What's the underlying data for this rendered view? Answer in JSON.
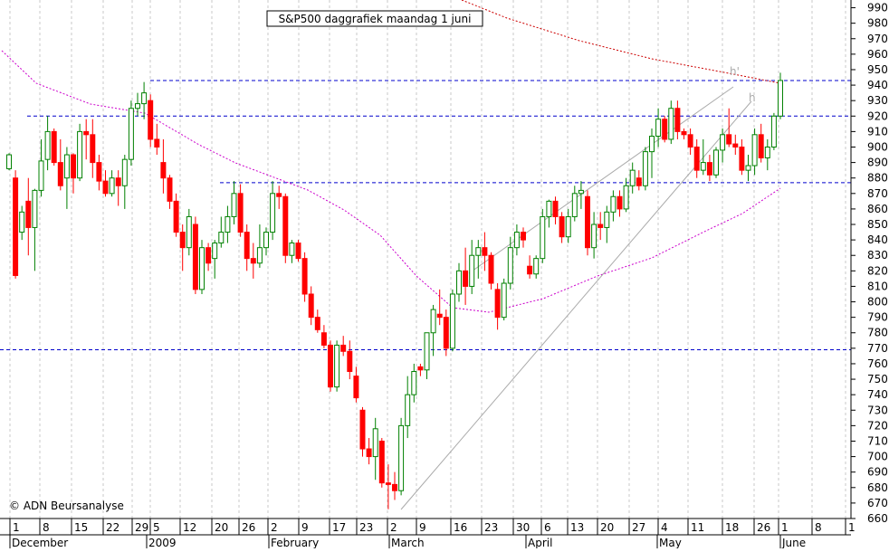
{
  "chart_data": {
    "type": "candlestick",
    "title": "S&P500 daggrafiek maandag 1 juni",
    "copyright": "© ADN Beursanalyse",
    "xlabel": "",
    "ylabel": "",
    "ylim": [
      660,
      995
    ],
    "y_ticks": [
      660,
      670,
      680,
      690,
      700,
      710,
      720,
      730,
      740,
      750,
      760,
      770,
      780,
      790,
      800,
      810,
      820,
      830,
      840,
      850,
      860,
      870,
      880,
      890,
      900,
      910,
      920,
      930,
      940,
      950,
      960,
      970,
      980,
      990
    ],
    "x_tick_labels": [
      "1",
      "8",
      "15",
      "22",
      "29",
      "5",
      "12",
      "20",
      "26",
      "2",
      "9",
      "17",
      "23",
      "2",
      "9",
      "16",
      "23",
      "30",
      "6",
      "13",
      "20",
      "27",
      "4",
      "11",
      "18",
      "26",
      "1",
      "8",
      "1"
    ],
    "month_labels": [
      "December",
      "2009",
      "February",
      "March",
      "April",
      "May",
      "June"
    ],
    "horizontal_levels": [
      943,
      920,
      877,
      769
    ],
    "pattern_labels": [
      "h'",
      "h"
    ],
    "grid": true,
    "colors": {
      "up": "#008000",
      "down": "#ff0000",
      "level": "#0000cc",
      "ma_long": "#cc0000",
      "ma_mid": "#cc00cc",
      "trend": "#aaaaaa"
    },
    "candles": [
      {
        "o": 886,
        "h": 896,
        "l": 885,
        "c": 895
      },
      {
        "o": 880,
        "h": 885,
        "l": 815,
        "c": 817
      },
      {
        "o": 845,
        "h": 862,
        "l": 840,
        "c": 858
      },
      {
        "o": 865,
        "h": 880,
        "l": 830,
        "c": 848
      },
      {
        "o": 848,
        "h": 873,
        "l": 820,
        "c": 872
      },
      {
        "o": 872,
        "h": 905,
        "l": 868,
        "c": 891
      },
      {
        "o": 892,
        "h": 920,
        "l": 885,
        "c": 910
      },
      {
        "o": 910,
        "h": 912,
        "l": 888,
        "c": 890
      },
      {
        "o": 890,
        "h": 905,
        "l": 872,
        "c": 875
      },
      {
        "o": 880,
        "h": 900,
        "l": 860,
        "c": 895
      },
      {
        "o": 895,
        "h": 896,
        "l": 870,
        "c": 880
      },
      {
        "o": 880,
        "h": 915,
        "l": 878,
        "c": 910
      },
      {
        "o": 910,
        "h": 918,
        "l": 892,
        "c": 908
      },
      {
        "o": 908,
        "h": 918,
        "l": 880,
        "c": 890
      },
      {
        "o": 890,
        "h": 895,
        "l": 872,
        "c": 878
      },
      {
        "o": 878,
        "h": 885,
        "l": 868,
        "c": 870
      },
      {
        "o": 870,
        "h": 885,
        "l": 868,
        "c": 880
      },
      {
        "o": 880,
        "h": 885,
        "l": 862,
        "c": 875
      },
      {
        "o": 875,
        "h": 895,
        "l": 860,
        "c": 892
      },
      {
        "o": 892,
        "h": 930,
        "l": 888,
        "c": 925
      },
      {
        "o": 925,
        "h": 935,
        "l": 920,
        "c": 928
      },
      {
        "o": 928,
        "h": 942,
        "l": 918,
        "c": 935
      },
      {
        "o": 930,
        "h": 934,
        "l": 900,
        "c": 905
      },
      {
        "o": 905,
        "h": 915,
        "l": 895,
        "c": 900
      },
      {
        "o": 890,
        "h": 905,
        "l": 870,
        "c": 880
      },
      {
        "o": 880,
        "h": 882,
        "l": 860,
        "c": 865
      },
      {
        "o": 865,
        "h": 870,
        "l": 842,
        "c": 845
      },
      {
        "o": 845,
        "h": 850,
        "l": 820,
        "c": 835
      },
      {
        "o": 835,
        "h": 860,
        "l": 830,
        "c": 855
      },
      {
        "o": 850,
        "h": 855,
        "l": 805,
        "c": 808
      },
      {
        "o": 808,
        "h": 840,
        "l": 805,
        "c": 835
      },
      {
        "o": 835,
        "h": 838,
        "l": 820,
        "c": 825
      },
      {
        "o": 828,
        "h": 840,
        "l": 815,
        "c": 838
      },
      {
        "o": 838,
        "h": 855,
        "l": 835,
        "c": 845
      },
      {
        "o": 845,
        "h": 862,
        "l": 838,
        "c": 855
      },
      {
        "o": 855,
        "h": 878,
        "l": 850,
        "c": 870
      },
      {
        "o": 870,
        "h": 876,
        "l": 842,
        "c": 845
      },
      {
        "o": 845,
        "h": 850,
        "l": 820,
        "c": 828
      },
      {
        "o": 828,
        "h": 838,
        "l": 815,
        "c": 825
      },
      {
        "o": 825,
        "h": 850,
        "l": 822,
        "c": 835
      },
      {
        "o": 835,
        "h": 848,
        "l": 830,
        "c": 845
      },
      {
        "o": 845,
        "h": 878,
        "l": 840,
        "c": 870
      },
      {
        "o": 870,
        "h": 875,
        "l": 860,
        "c": 868
      },
      {
        "o": 868,
        "h": 870,
        "l": 825,
        "c": 830
      },
      {
        "o": 830,
        "h": 840,
        "l": 825,
        "c": 838
      },
      {
        "o": 838,
        "h": 840,
        "l": 826,
        "c": 828
      },
      {
        "o": 828,
        "h": 832,
        "l": 800,
        "c": 805
      },
      {
        "o": 805,
        "h": 810,
        "l": 785,
        "c": 790
      },
      {
        "o": 790,
        "h": 795,
        "l": 780,
        "c": 782
      },
      {
        "o": 780,
        "h": 785,
        "l": 770,
        "c": 772
      },
      {
        "o": 772,
        "h": 775,
        "l": 742,
        "c": 745
      },
      {
        "o": 745,
        "h": 775,
        "l": 742,
        "c": 772
      },
      {
        "o": 772,
        "h": 778,
        "l": 765,
        "c": 768
      },
      {
        "o": 768,
        "h": 775,
        "l": 750,
        "c": 755
      },
      {
        "o": 752,
        "h": 758,
        "l": 735,
        "c": 738
      },
      {
        "o": 730,
        "h": 732,
        "l": 700,
        "c": 705
      },
      {
        "o": 705,
        "h": 712,
        "l": 695,
        "c": 700
      },
      {
        "o": 700,
        "h": 725,
        "l": 685,
        "c": 718
      },
      {
        "o": 710,
        "h": 712,
        "l": 680,
        "c": 683
      },
      {
        "o": 683,
        "h": 695,
        "l": 666,
        "c": 682
      },
      {
        "o": 682,
        "h": 690,
        "l": 672,
        "c": 678
      },
      {
        "o": 678,
        "h": 725,
        "l": 675,
        "c": 720
      },
      {
        "o": 720,
        "h": 752,
        "l": 712,
        "c": 740
      },
      {
        "o": 740,
        "h": 760,
        "l": 735,
        "c": 755
      },
      {
        "o": 758,
        "h": 760,
        "l": 752,
        "c": 756
      },
      {
        "o": 756,
        "h": 780,
        "l": 750,
        "c": 780
      },
      {
        "o": 780,
        "h": 798,
        "l": 765,
        "c": 795
      },
      {
        "o": 792,
        "h": 808,
        "l": 785,
        "c": 790
      },
      {
        "o": 790,
        "h": 795,
        "l": 765,
        "c": 770
      },
      {
        "o": 770,
        "h": 808,
        "l": 768,
        "c": 805
      },
      {
        "o": 805,
        "h": 825,
        "l": 800,
        "c": 820
      },
      {
        "o": 820,
        "h": 835,
        "l": 798,
        "c": 810
      },
      {
        "o": 810,
        "h": 840,
        "l": 805,
        "c": 830
      },
      {
        "o": 830,
        "h": 840,
        "l": 815,
        "c": 835
      },
      {
        "o": 835,
        "h": 845,
        "l": 820,
        "c": 830
      },
      {
        "o": 830,
        "h": 832,
        "l": 808,
        "c": 812
      },
      {
        "o": 808,
        "h": 812,
        "l": 782,
        "c": 790
      },
      {
        "o": 790,
        "h": 815,
        "l": 788,
        "c": 812
      },
      {
        "o": 812,
        "h": 842,
        "l": 808,
        "c": 835
      },
      {
        "o": 835,
        "h": 850,
        "l": 830,
        "c": 845
      },
      {
        "o": 845,
        "h": 848,
        "l": 835,
        "c": 840
      },
      {
        "o": 823,
        "h": 830,
        "l": 815,
        "c": 818
      },
      {
        "o": 818,
        "h": 830,
        "l": 815,
        "c": 828
      },
      {
        "o": 828,
        "h": 860,
        "l": 825,
        "c": 855
      },
      {
        "o": 855,
        "h": 866,
        "l": 848,
        "c": 865
      },
      {
        "o": 865,
        "h": 868,
        "l": 850,
        "c": 855
      },
      {
        "o": 855,
        "h": 858,
        "l": 838,
        "c": 842
      },
      {
        "o": 842,
        "h": 860,
        "l": 838,
        "c": 855
      },
      {
        "o": 855,
        "h": 875,
        "l": 852,
        "c": 870
      },
      {
        "o": 870,
        "h": 878,
        "l": 860,
        "c": 872
      },
      {
        "o": 868,
        "h": 872,
        "l": 830,
        "c": 835
      },
      {
        "o": 835,
        "h": 858,
        "l": 828,
        "c": 850
      },
      {
        "o": 850,
        "h": 858,
        "l": 840,
        "c": 848
      },
      {
        "o": 848,
        "h": 862,
        "l": 838,
        "c": 858
      },
      {
        "o": 858,
        "h": 872,
        "l": 852,
        "c": 868
      },
      {
        "o": 868,
        "h": 872,
        "l": 855,
        "c": 860
      },
      {
        "o": 860,
        "h": 880,
        "l": 858,
        "c": 875
      },
      {
        "o": 875,
        "h": 890,
        "l": 870,
        "c": 885
      },
      {
        "o": 880,
        "h": 885,
        "l": 872,
        "c": 875
      },
      {
        "o": 875,
        "h": 900,
        "l": 872,
        "c": 897
      },
      {
        "o": 897,
        "h": 912,
        "l": 880,
        "c": 907
      },
      {
        "o": 907,
        "h": 925,
        "l": 900,
        "c": 918
      },
      {
        "o": 918,
        "h": 920,
        "l": 903,
        "c": 905
      },
      {
        "o": 905,
        "h": 930,
        "l": 902,
        "c": 925
      },
      {
        "o": 925,
        "h": 930,
        "l": 905,
        "c": 910
      },
      {
        "o": 910,
        "h": 912,
        "l": 905,
        "c": 908
      },
      {
        "o": 908,
        "h": 912,
        "l": 895,
        "c": 900
      },
      {
        "o": 900,
        "h": 905,
        "l": 880,
        "c": 885
      },
      {
        "o": 885,
        "h": 905,
        "l": 882,
        "c": 890
      },
      {
        "o": 890,
        "h": 895,
        "l": 878,
        "c": 882
      },
      {
        "o": 882,
        "h": 900,
        "l": 880,
        "c": 898
      },
      {
        "o": 898,
        "h": 912,
        "l": 890,
        "c": 908
      },
      {
        "o": 908,
        "h": 925,
        "l": 900,
        "c": 902
      },
      {
        "o": 902,
        "h": 908,
        "l": 895,
        "c": 900
      },
      {
        "o": 900,
        "h": 905,
        "l": 882,
        "c": 885
      },
      {
        "o": 885,
        "h": 895,
        "l": 878,
        "c": 888
      },
      {
        "o": 888,
        "h": 912,
        "l": 882,
        "c": 908
      },
      {
        "o": 908,
        "h": 915,
        "l": 890,
        "c": 893
      },
      {
        "o": 893,
        "h": 905,
        "l": 885,
        "c": 900
      },
      {
        "o": 900,
        "h": 922,
        "l": 898,
        "c": 920
      },
      {
        "o": 920,
        "h": 948,
        "l": 918,
        "c": 943
      }
    ]
  },
  "layout_note_free": true
}
